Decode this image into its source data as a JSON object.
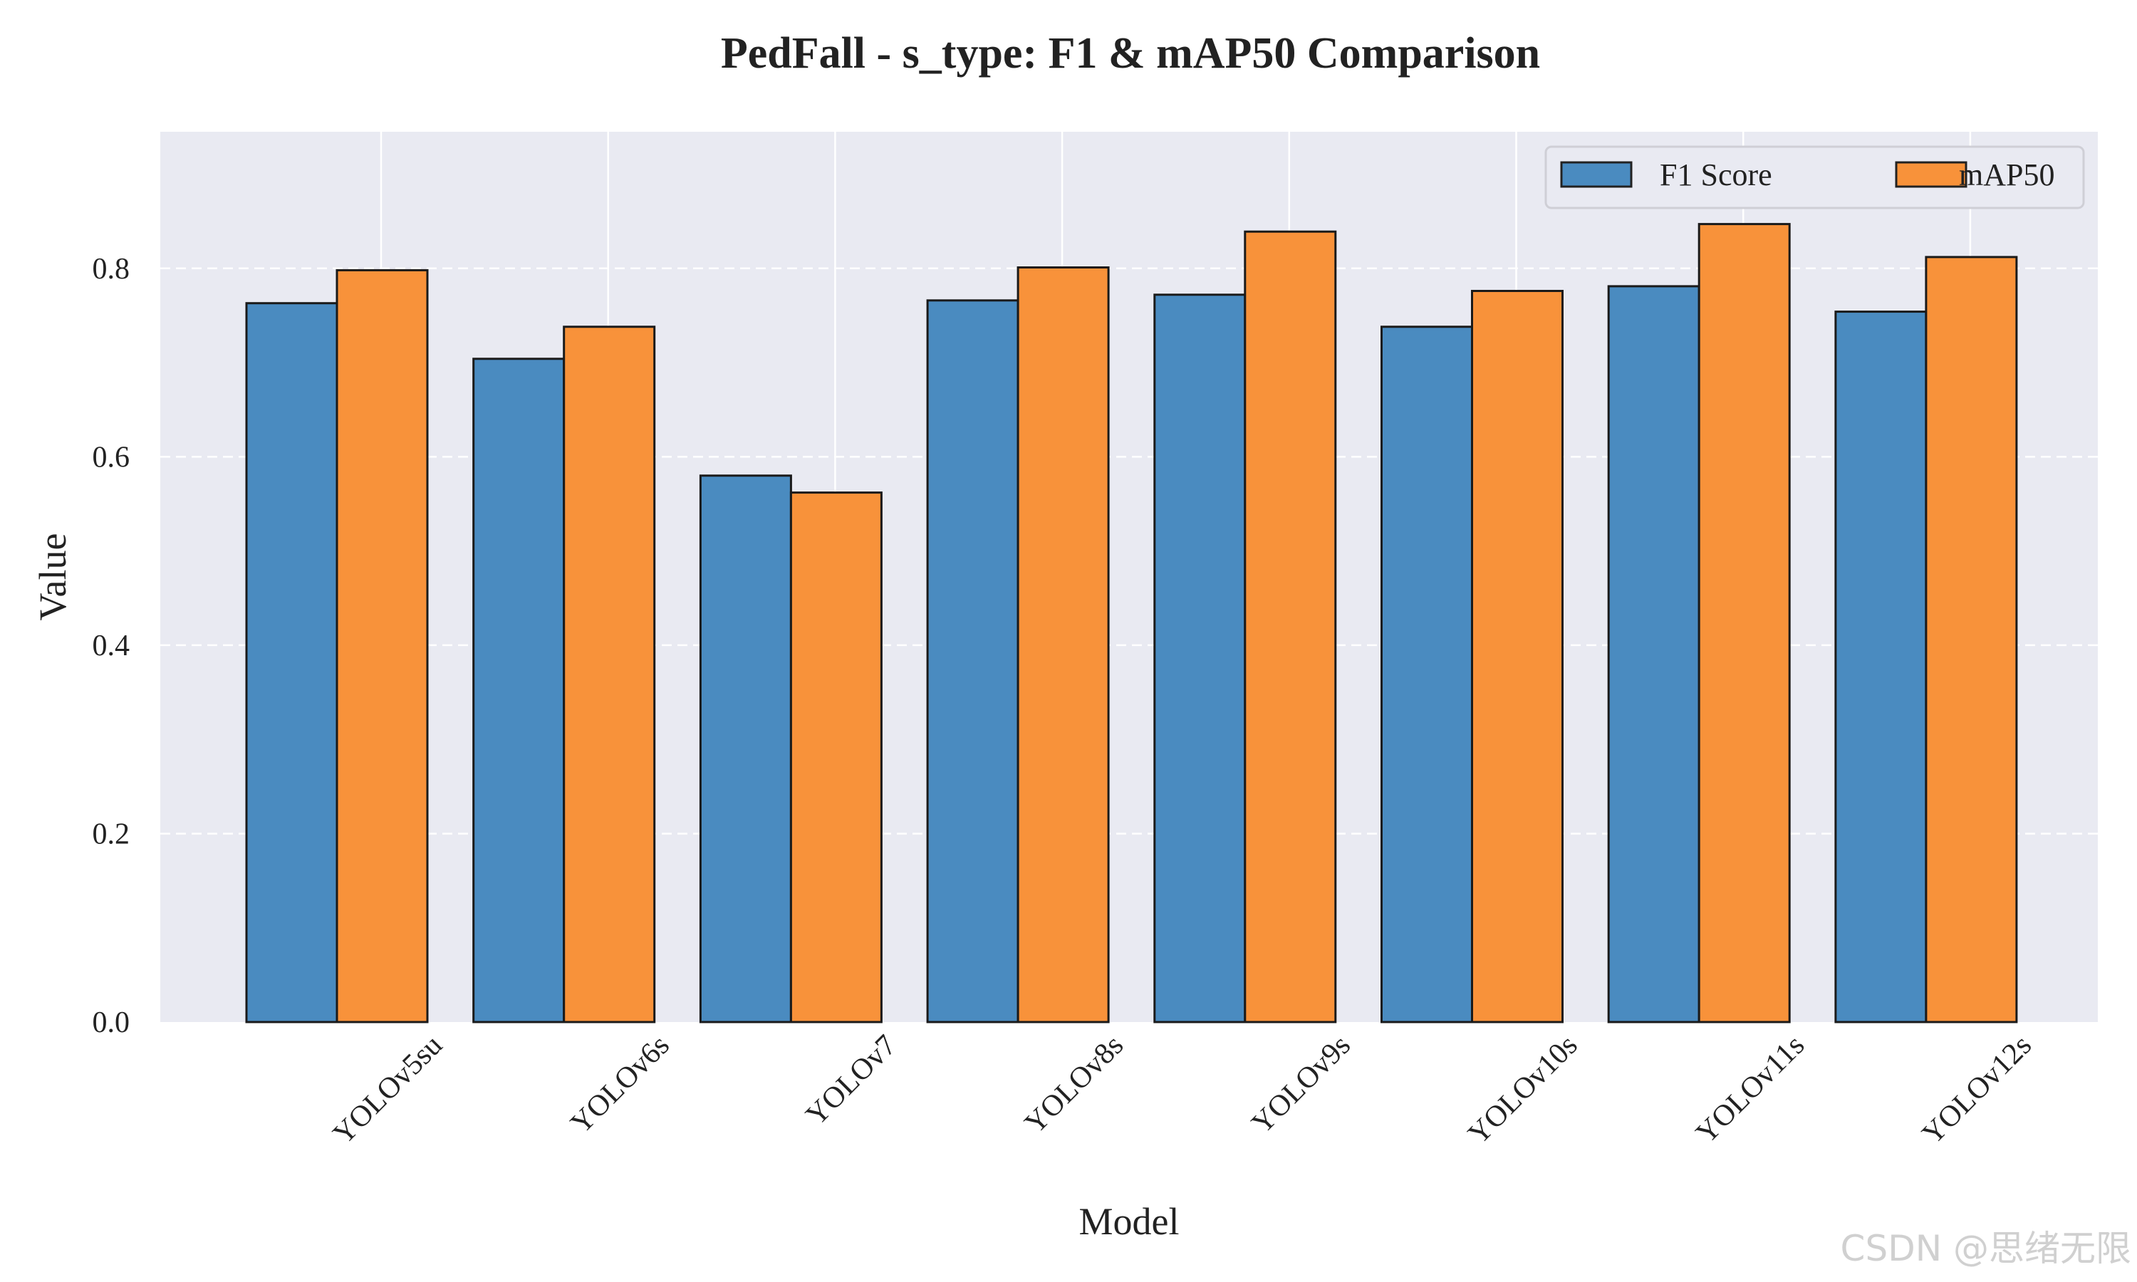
{
  "chart_data": {
    "type": "bar",
    "title": "PedFall - s_type: F1 & mAP50 Comparison",
    "xlabel": "Model",
    "ylabel": "Value",
    "categories": [
      "YOLOv5su",
      "YOLOv6s",
      "YOLOv7",
      "YOLOv8s",
      "YOLOv9s",
      "YOLOv10s",
      "YOLOv11s",
      "YOLOv12s"
    ],
    "series": [
      {
        "name": "F1 Score",
        "color": "#4a8bc0",
        "values": [
          0.763,
          0.704,
          0.58,
          0.766,
          0.772,
          0.738,
          0.781,
          0.754
        ]
      },
      {
        "name": "mAP50",
        "color": "#f8923a",
        "values": [
          0.798,
          0.738,
          0.562,
          0.801,
          0.839,
          0.776,
          0.847,
          0.812
        ]
      }
    ],
    "ylim": [
      0,
      0.945
    ],
    "yticks": [
      0.0,
      0.2,
      0.4,
      0.6,
      0.8
    ],
    "ytick_labels": [
      "0.0",
      "0.2",
      "0.4",
      "0.6",
      "0.8"
    ],
    "grid": true,
    "legend_location": "top-right",
    "plot_background": "#e9eaf2"
  },
  "watermark": "CSDN @思绪无限"
}
